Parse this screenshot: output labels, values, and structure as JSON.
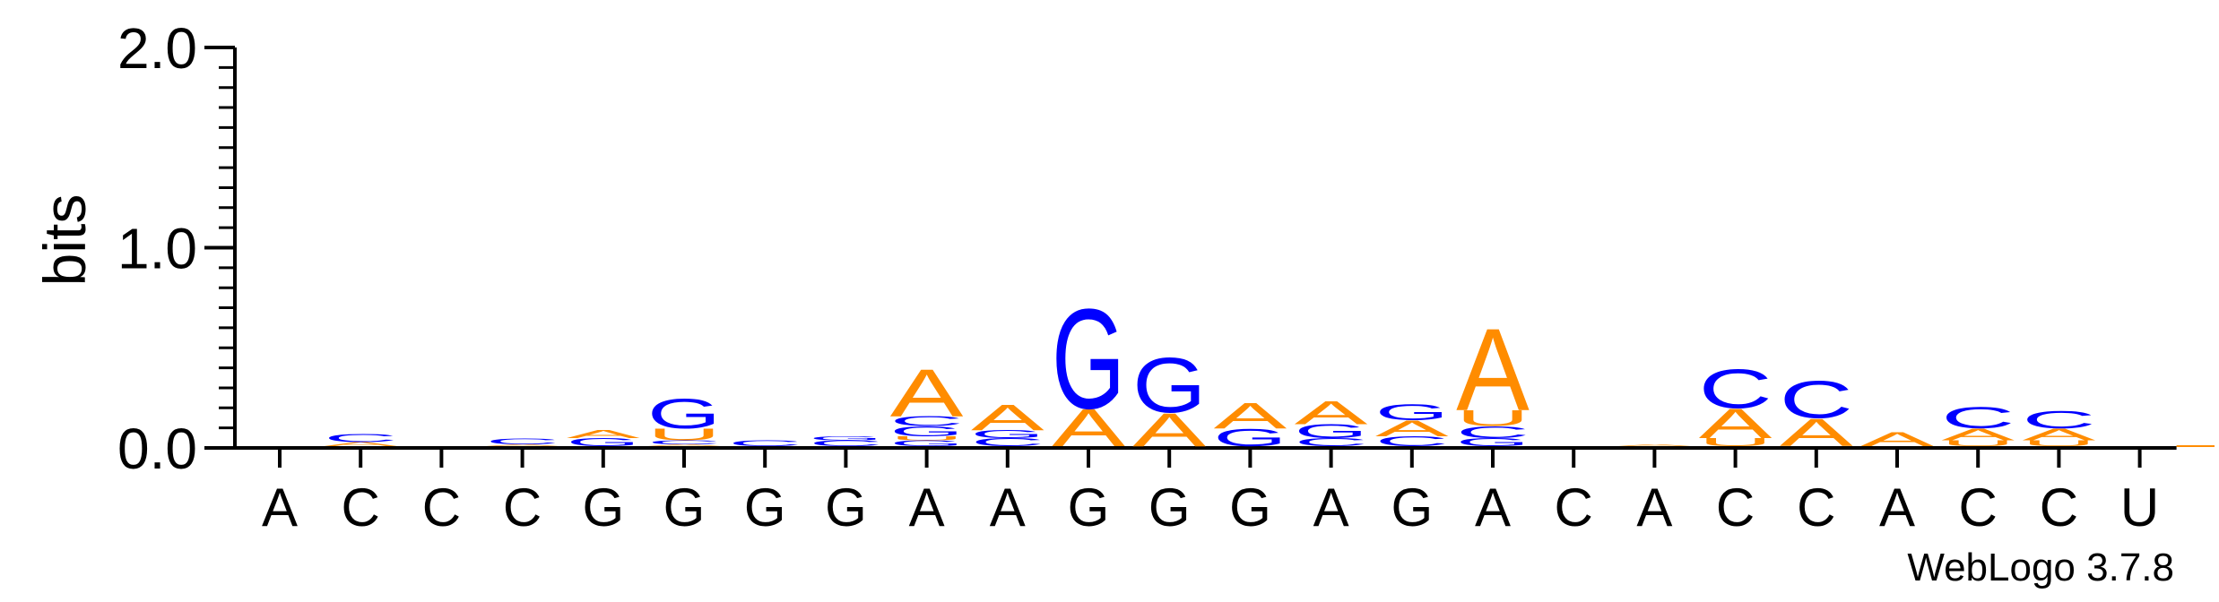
{
  "chart_data": {
    "type": "sequence-logo",
    "ylabel": "bits",
    "ylim": [
      0,
      2
    ],
    "yticks": [
      "0.0",
      "1.0",
      "2.0"
    ],
    "footer": "WebLogo 3.7.8",
    "colors": {
      "A": "#ff8c00",
      "U": "#ff8c00",
      "G": "#0000ff",
      "C": "#0000ff"
    },
    "xlabels": [
      "A",
      "C",
      "C",
      "C",
      "G",
      "G",
      "G",
      "G",
      "A",
      "A",
      "G",
      "G",
      "G",
      "A",
      "G",
      "A",
      "C",
      "A",
      "C",
      "C",
      "A",
      "C",
      "C",
      "U"
    ],
    "columns": [
      [],
      [
        {
          "letter": "A",
          "height": 0.02
        },
        {
          "letter": "C",
          "height": 0.04
        }
      ],
      [],
      [
        {
          "letter": "A",
          "height": 0.01
        },
        {
          "letter": "C",
          "height": 0.03
        }
      ],
      [
        {
          "letter": "G",
          "height": 0.04
        },
        {
          "letter": "A",
          "height": 0.04
        }
      ],
      [
        {
          "letter": "A",
          "height": 0.01
        },
        {
          "letter": "C",
          "height": 0.02
        },
        {
          "letter": "U",
          "height": 0.06
        },
        {
          "letter": "G",
          "height": 0.15
        }
      ],
      [
        {
          "letter": "C",
          "height": 0.03
        }
      ],
      [
        {
          "letter": "C",
          "height": 0.03
        },
        {
          "letter": "G",
          "height": 0.02
        }
      ],
      [
        {
          "letter": "G",
          "height": 0.03
        },
        {
          "letter": "U",
          "height": 0.02
        },
        {
          "letter": "G",
          "height": 0.05
        },
        {
          "letter": "C",
          "height": 0.05
        },
        {
          "letter": "A",
          "height": 0.24
        }
      ],
      [
        {
          "letter": "C",
          "height": 0.04
        },
        {
          "letter": "G",
          "height": 0.04
        },
        {
          "letter": "A",
          "height": 0.13
        }
      ],
      [
        {
          "letter": "A",
          "height": 0.19
        },
        {
          "letter": "G",
          "height": 0.51
        }
      ],
      [
        {
          "letter": "A",
          "height": 0.17
        },
        {
          "letter": "G",
          "height": 0.28
        }
      ],
      [
        {
          "letter": "G",
          "height": 0.09
        },
        {
          "letter": "A",
          "height": 0.13
        }
      ],
      [
        {
          "letter": "C",
          "height": 0.04
        },
        {
          "letter": "G",
          "height": 0.07
        },
        {
          "letter": "A",
          "height": 0.12
        }
      ],
      [
        {
          "letter": "C",
          "height": 0.05
        },
        {
          "letter": "A",
          "height": 0.08
        },
        {
          "letter": "G",
          "height": 0.08
        }
      ],
      [
        {
          "letter": "G",
          "height": 0.04
        },
        {
          "letter": "C",
          "height": 0.06
        },
        {
          "letter": "U",
          "height": 0.08
        },
        {
          "letter": "A",
          "height": 0.42
        }
      ],
      [],
      [
        {
          "letter": "A",
          "height": 0.01
        }
      ],
      [
        {
          "letter": "U",
          "height": 0.04
        },
        {
          "letter": "A",
          "height": 0.15
        },
        {
          "letter": "C",
          "height": 0.2
        }
      ],
      [
        {
          "letter": "A",
          "height": 0.14
        },
        {
          "letter": "C",
          "height": 0.19
        }
      ],
      [
        {
          "letter": "A",
          "height": 0.07
        }
      ],
      [
        {
          "letter": "U",
          "height": 0.03
        },
        {
          "letter": "A",
          "height": 0.06
        },
        {
          "letter": "C",
          "height": 0.11
        }
      ],
      [
        {
          "letter": "U",
          "height": 0.03
        },
        {
          "letter": "A",
          "height": 0.06
        },
        {
          "letter": "C",
          "height": 0.09
        }
      ],
      []
    ]
  }
}
